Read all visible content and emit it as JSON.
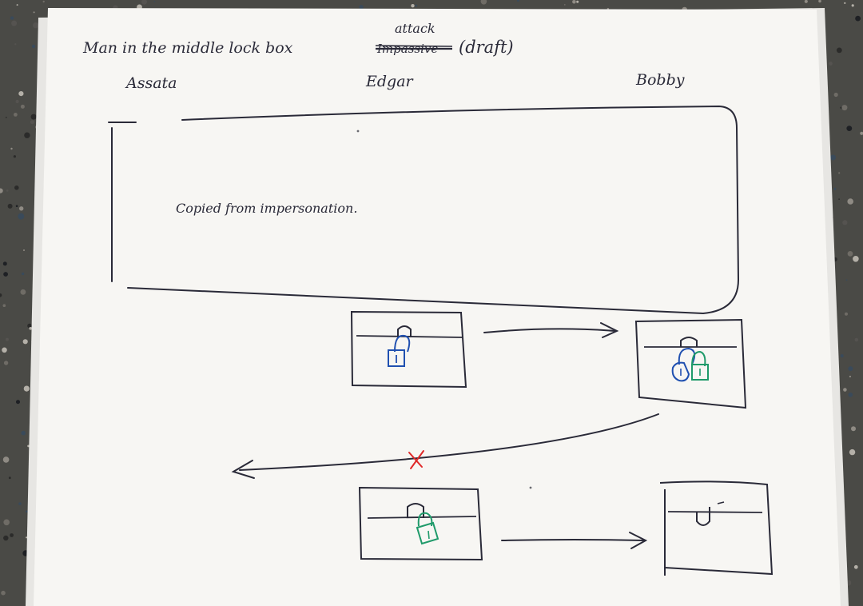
{
  "title": {
    "main": "Man in the middle lock box",
    "struck_word": "Impassive",
    "inserted_word": "attack",
    "suffix": "(draft)"
  },
  "participants": [
    "Assata",
    "Edgar",
    "Bobby"
  ],
  "note": "Copied from impersonation.",
  "colors": {
    "ink": "#2a2a38",
    "assata_lock": "#2050b0",
    "edgar_lock": "#1f9a6a",
    "intercept_mark": "#e02828",
    "paper": "#f7f6f3"
  },
  "steps": [
    {
      "box": "edgar-box",
      "locks": [
        "blue-padlock"
      ]
    },
    {
      "box": "bobby-box",
      "locks": [
        "blue-padlock",
        "green-padlock"
      ]
    },
    {
      "box": "edgar-box",
      "locks": [
        "green-padlock"
      ]
    },
    {
      "box": "bobby-box",
      "locks": []
    }
  ]
}
